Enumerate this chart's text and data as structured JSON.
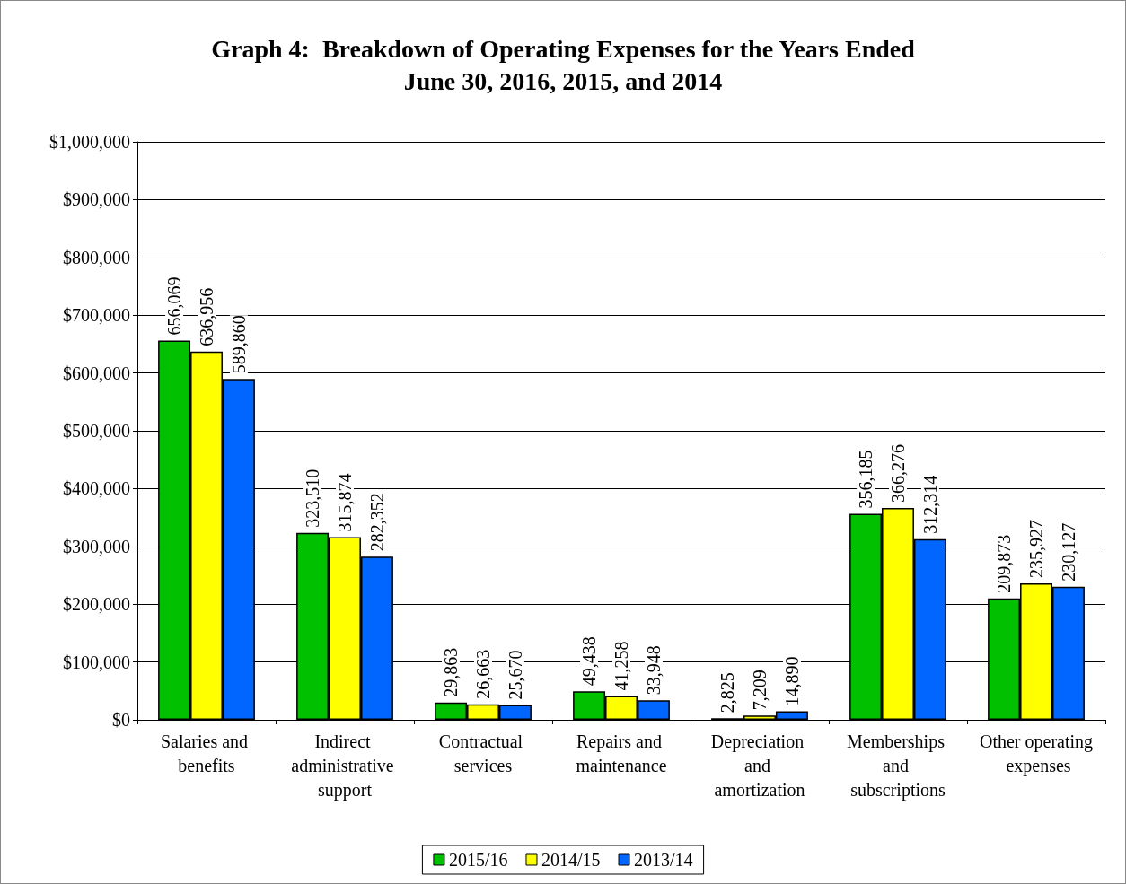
{
  "chart_data": {
    "type": "bar",
    "title": "Graph 4:  Breakdown of Operating Expenses for the Years Ended\nJune 30, 2016, 2015, and 2014",
    "categories": [
      "Salaries and benefits",
      "Indirect administrative support",
      "Contractual services",
      "Repairs and maintenance",
      "Depreciation and amortization",
      "Memberships and subscriptions",
      "Other operating expenses"
    ],
    "series": [
      {
        "name": "2015/16",
        "color": "#00c000",
        "values": [
          656069,
          323510,
          29863,
          49438,
          2825,
          356185,
          209873
        ],
        "value_labels": [
          "656,069",
          "323,510",
          "29,863",
          "49,438",
          "2,825",
          "356,185",
          "209,873"
        ]
      },
      {
        "name": "2014/15",
        "color": "#ffff00",
        "values": [
          636956,
          315874,
          26663,
          41258,
          7209,
          366276,
          235927
        ],
        "value_labels": [
          "636,956",
          "315,874",
          "26,663",
          "41,258",
          "7,209",
          "366,276",
          "235,927"
        ]
      },
      {
        "name": "2013/14",
        "color": "#0066ff",
        "values": [
          589860,
          282352,
          25670,
          33948,
          14890,
          312314,
          230127
        ],
        "value_labels": [
          "589,860",
          "282,352",
          "25,670",
          "33,948",
          "14,890",
          "312,314",
          "230,127"
        ]
      }
    ],
    "ylim": [
      0,
      1000000
    ],
    "yticks": [
      {
        "value": 0,
        "label": "$0"
      },
      {
        "value": 100000,
        "label": "$100,000"
      },
      {
        "value": 200000,
        "label": "$200,000"
      },
      {
        "value": 300000,
        "label": "$300,000"
      },
      {
        "value": 400000,
        "label": "$400,000"
      },
      {
        "value": 500000,
        "label": "$500,000"
      },
      {
        "value": 600000,
        "label": "$600,000"
      },
      {
        "value": 700000,
        "label": "$700,000"
      },
      {
        "value": 800000,
        "label": "$800,000"
      },
      {
        "value": 900000,
        "label": "$900,000"
      },
      {
        "value": 1000000,
        "label": "$1,000,000"
      }
    ],
    "grid": "y",
    "legend": "bottom"
  }
}
